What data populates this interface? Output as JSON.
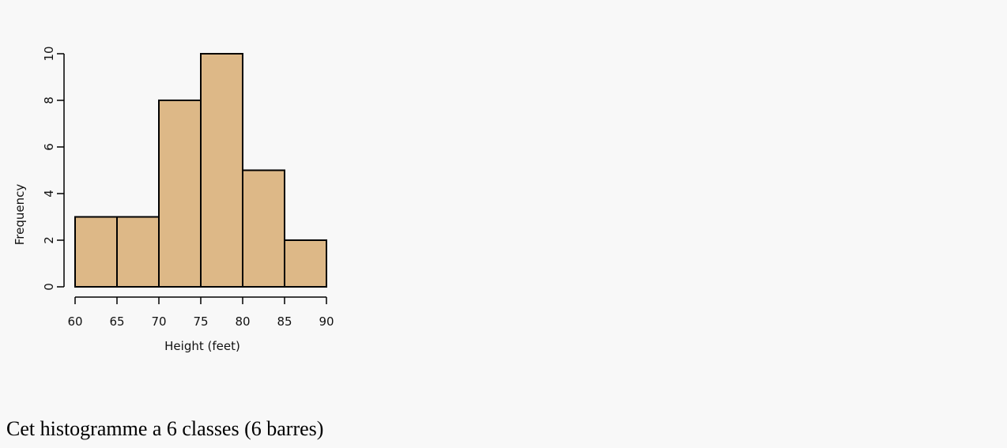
{
  "chart_data": {
    "type": "bar",
    "subtype": "histogram",
    "bins": [
      [
        60,
        65
      ],
      [
        65,
        70
      ],
      [
        70,
        75
      ],
      [
        75,
        80
      ],
      [
        80,
        85
      ],
      [
        85,
        90
      ]
    ],
    "values": [
      3,
      3,
      8,
      10,
      5,
      2
    ],
    "xlabel": "Height (feet)",
    "ylabel": "Frequency",
    "xlim": [
      60,
      90
    ],
    "ylim": [
      0,
      10
    ],
    "xticks": [
      60,
      65,
      70,
      75,
      80,
      85,
      90
    ],
    "yticks": [
      0,
      2,
      4,
      6,
      8,
      10
    ],
    "grid": false,
    "bar_color": "#ddb887",
    "edge_color": "#000000"
  },
  "caption": "Cet histogramme a 6 classes (6 barres)"
}
